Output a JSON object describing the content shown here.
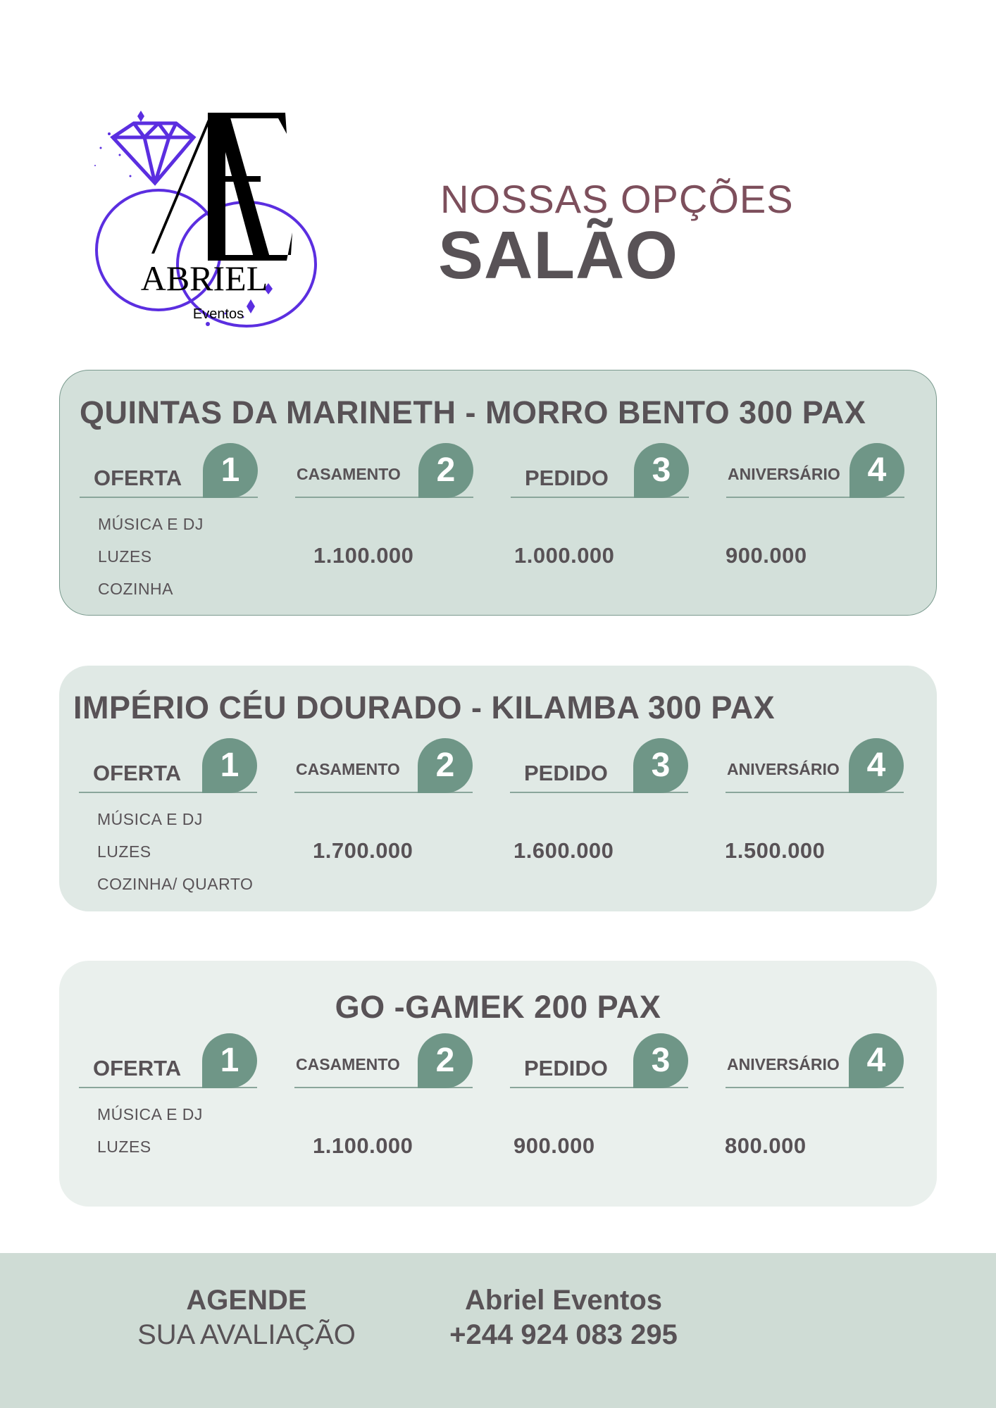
{
  "logo": {
    "text": "ABRIEL",
    "subtext": "Eventos",
    "monogram": "AE",
    "colors": {
      "accent": "#5b2ee0",
      "ink": "#000000"
    }
  },
  "header": {
    "kicker": "NOSSAS OPÇÕES",
    "title": "SALÃO"
  },
  "colors": {
    "text": "#585256",
    "kicker": "#7d4f5c",
    "badge": "#6f9687",
    "card1": "#d3e0da",
    "card2": "#e0e9e5",
    "card3": "#eaf0ed",
    "footer": "#cfdcd5"
  },
  "venues": [
    {
      "title": "QUINTAS DA MARINETH - MORRO BENTO 300 PAX",
      "columns": [
        {
          "label": "OFERTA",
          "num": "1"
        },
        {
          "label": "CASAMENTO",
          "num": "2"
        },
        {
          "label": "PEDIDO",
          "num": "3"
        },
        {
          "label": "ANIVERSÁRIO",
          "num": "4"
        }
      ],
      "items": [
        "MÚSICA E DJ",
        "LUZES",
        "COZINHA"
      ],
      "prices": [
        "1.100.000",
        "1.000.000",
        "900.000"
      ]
    },
    {
      "title": "IMPÉRIO CÉU DOURADO - KILAMBA 300 PAX",
      "columns": [
        {
          "label": "OFERTA",
          "num": "1"
        },
        {
          "label": "CASAMENTO",
          "num": "2"
        },
        {
          "label": "PEDIDO",
          "num": "3"
        },
        {
          "label": "ANIVERSÁRIO",
          "num": "4"
        }
      ],
      "items": [
        "MÚSICA E DJ",
        "LUZES",
        "COZINHA/ QUARTO"
      ],
      "prices": [
        "1.700.000",
        "1.600.000",
        "1.500.000"
      ]
    },
    {
      "title": "GO -GAMEK 200 PAX",
      "columns": [
        {
          "label": "OFERTA",
          "num": "1"
        },
        {
          "label": "CASAMENTO",
          "num": "2"
        },
        {
          "label": "PEDIDO",
          "num": "3"
        },
        {
          "label": "ANIVERSÁRIO",
          "num": "4"
        }
      ],
      "items": [
        "MÚSICA E DJ",
        "LUZES"
      ],
      "prices": [
        "1.100.000",
        "900.000",
        "800.000"
      ]
    }
  ],
  "footer": {
    "cta_line1": "AGENDE",
    "cta_line2": "SUA AVALIAÇÃO",
    "company": "Abriel Eventos",
    "phone": "+244 924 083 295"
  }
}
